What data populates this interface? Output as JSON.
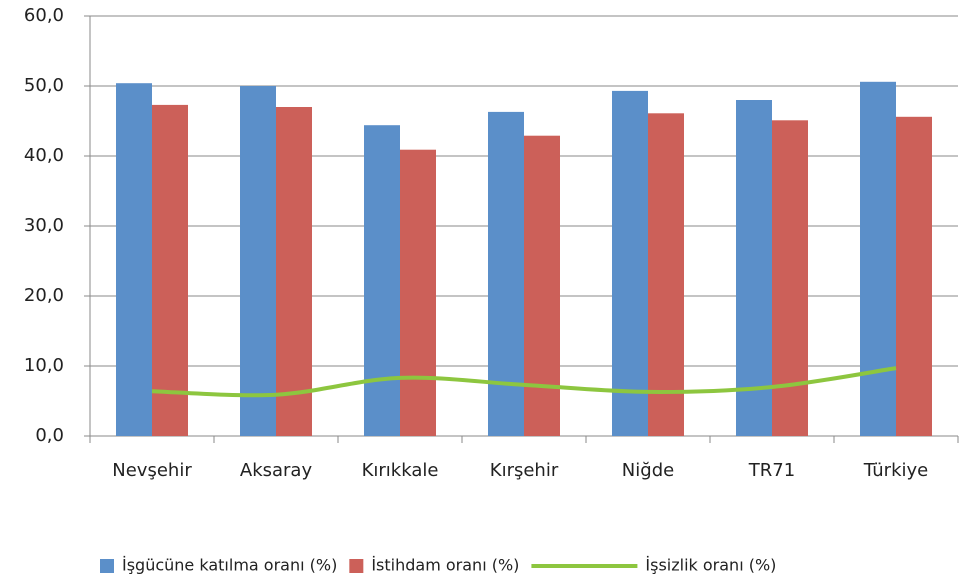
{
  "chart_data": {
    "type": "bar_line",
    "categories": [
      "Nevşehir",
      "Aksaray",
      "Kırıkkale",
      "Kırşehir",
      "Niğde",
      "TR71",
      "Türkiye"
    ],
    "series": [
      {
        "name": "İşgücüne katılma oranı (%)",
        "color": "#5b8fc9",
        "type": "bar",
        "values": [
          50.4,
          50.0,
          44.4,
          46.3,
          49.3,
          48.0,
          50.6
        ]
      },
      {
        "name": "İstihdam oranı (%)",
        "color": "#cc6059",
        "type": "bar",
        "values": [
          47.3,
          47.0,
          40.9,
          42.9,
          46.1,
          45.1,
          45.6
        ]
      },
      {
        "name": "İşsizlik oranı (%)",
        "color": "#8dc63f",
        "type": "line",
        "values": [
          6.4,
          5.9,
          8.3,
          7.3,
          6.3,
          7.0,
          9.7
        ]
      }
    ],
    "ylim": [
      0,
      60
    ],
    "yticks": [
      {
        "value": 0,
        "label": "0,0"
      },
      {
        "value": 10,
        "label": "10,0"
      },
      {
        "value": 20,
        "label": "20,0"
      },
      {
        "value": 30,
        "label": "30,0"
      },
      {
        "value": 40,
        "label": "40,0"
      },
      {
        "value": 50,
        "label": "50,0"
      },
      {
        "value": 60,
        "label": "60,0"
      }
    ],
    "grid": true,
    "legend": "bottom"
  }
}
